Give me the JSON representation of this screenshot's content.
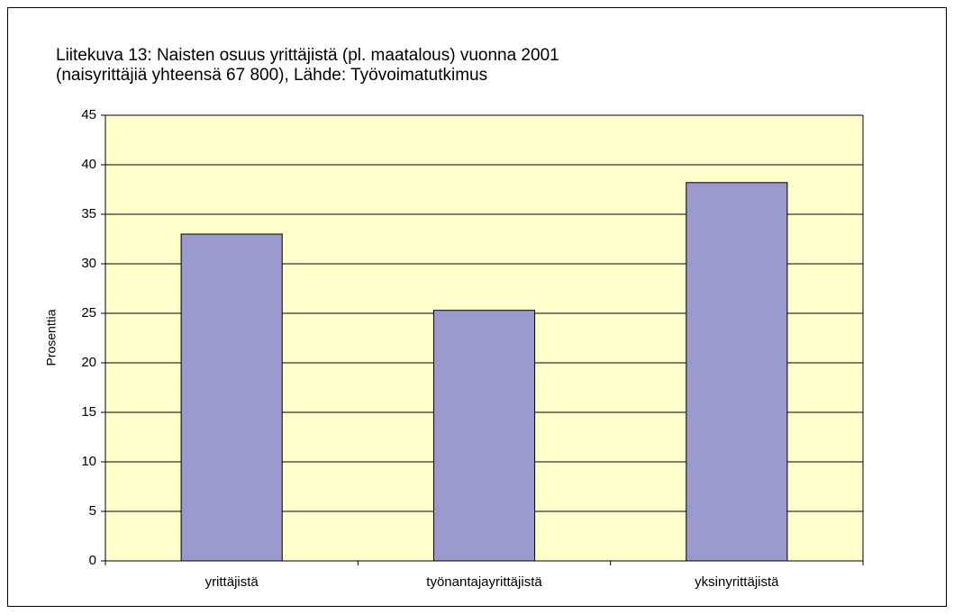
{
  "chart_data": {
    "type": "bar",
    "title": "Liitekuva 13: Naisten osuus yrittäjistä (pl. maatalous) vuonna 2001",
    "subtitle": "(naisyrittäjiä yhteensä 67 800), Lähde: Työvoimatutkimus",
    "y_label": "Prosenttia",
    "categories": [
      "yrittäjistä",
      "työnantajayrittäjistä",
      "yksinyrittäjistä"
    ],
    "values": [
      33.0,
      25.3,
      38.2
    ],
    "color": "#9999cc",
    "ylim": [
      0,
      45
    ],
    "yticks": [
      0,
      5,
      10,
      15,
      20,
      25,
      30,
      35,
      40,
      45
    ],
    "grid": true
  }
}
